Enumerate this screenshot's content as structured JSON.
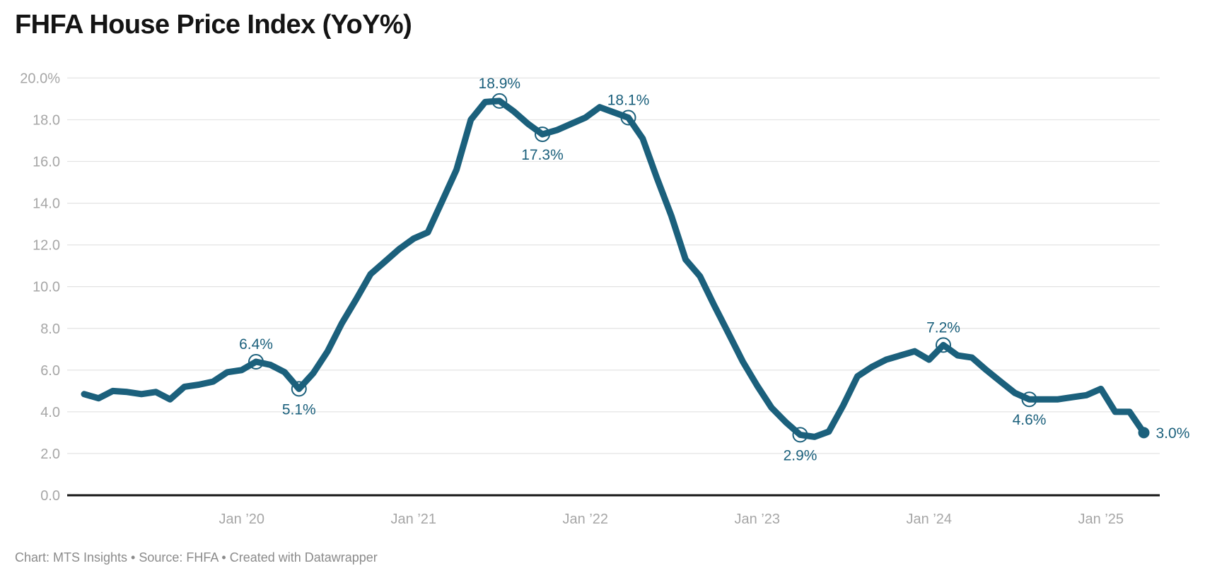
{
  "title": "FHFA House Price Index (YoY%)",
  "footer": "Chart: MTS Insights • Source: FHFA • Created with Datawrapper",
  "colors": {
    "line": "#1b607c",
    "annotation_text": "#1b607c",
    "axis_text": "#a6a6a6",
    "grid": "#e4e4e4",
    "baseline": "#161616",
    "title_text": "#141414",
    "footer_text": "#8b8b8b",
    "background": "#ffffff"
  },
  "chart_data": {
    "type": "line",
    "title": "FHFA House Price Index (YoY%)",
    "unit": "%",
    "grid": true,
    "legend_position": "none",
    "ylim": [
      0,
      20
    ],
    "x": [
      "2019-02",
      "2019-03",
      "2019-04",
      "2019-05",
      "2019-06",
      "2019-07",
      "2019-08",
      "2019-09",
      "2019-10",
      "2019-11",
      "2019-12",
      "2020-01",
      "2020-02",
      "2020-03",
      "2020-04",
      "2020-05",
      "2020-06",
      "2020-07",
      "2020-08",
      "2020-09",
      "2020-10",
      "2020-11",
      "2020-12",
      "2021-01",
      "2021-02",
      "2021-03",
      "2021-04",
      "2021-05",
      "2021-06",
      "2021-07",
      "2021-08",
      "2021-09",
      "2021-10",
      "2021-11",
      "2021-12",
      "2022-01",
      "2022-02",
      "2022-03",
      "2022-04",
      "2022-05",
      "2022-06",
      "2022-07",
      "2022-08",
      "2022-09",
      "2022-10",
      "2022-11",
      "2022-12",
      "2023-01",
      "2023-02",
      "2023-03",
      "2023-04",
      "2023-05",
      "2023-06",
      "2023-07",
      "2023-08",
      "2023-09",
      "2023-10",
      "2023-11",
      "2023-12",
      "2024-01",
      "2024-02",
      "2024-03",
      "2024-04",
      "2024-05",
      "2024-06",
      "2024-07",
      "2024-08",
      "2024-09",
      "2024-10",
      "2024-11",
      "2024-12",
      "2025-01",
      "2025-02",
      "2025-03",
      "2025-04"
    ],
    "values": [
      4.85,
      4.65,
      5.0,
      4.95,
      4.85,
      4.95,
      4.6,
      5.2,
      5.3,
      5.45,
      5.9,
      6.0,
      6.4,
      6.25,
      5.9,
      5.1,
      5.85,
      6.9,
      8.25,
      9.4,
      10.6,
      11.2,
      11.8,
      12.3,
      12.6,
      14.1,
      15.6,
      18.0,
      18.85,
      18.9,
      18.4,
      17.8,
      17.3,
      17.5,
      17.8,
      18.1,
      18.6,
      18.35,
      18.1,
      17.1,
      15.2,
      13.4,
      11.3,
      10.5,
      9.1,
      7.75,
      6.4,
      5.25,
      4.2,
      3.5,
      2.9,
      2.8,
      3.05,
      4.3,
      5.7,
      6.15,
      6.5,
      6.7,
      6.9,
      6.5,
      7.2,
      6.7,
      6.6,
      6.0,
      5.45,
      4.9,
      4.6,
      4.6,
      4.6,
      4.7,
      4.8,
      5.1,
      4.0,
      4.0,
      3.0
    ],
    "y_ticks": [
      {
        "value": 20,
        "label": "20.0%"
      },
      {
        "value": 18,
        "label": "18.0"
      },
      {
        "value": 16,
        "label": "16.0"
      },
      {
        "value": 14,
        "label": "14.0"
      },
      {
        "value": 12,
        "label": "12.0"
      },
      {
        "value": 10,
        "label": "10.0"
      },
      {
        "value": 8,
        "label": "8.0"
      },
      {
        "value": 6,
        "label": "6.0"
      },
      {
        "value": 4,
        "label": "4.0"
      },
      {
        "value": 2,
        "label": "2.0"
      },
      {
        "value": 0,
        "label": "0.0"
      }
    ],
    "x_ticks": [
      {
        "index": 11,
        "label": "Jan ’20"
      },
      {
        "index": 23,
        "label": "Jan ’21"
      },
      {
        "index": 35,
        "label": "Jan ’22"
      },
      {
        "index": 47,
        "label": "Jan ’23"
      },
      {
        "index": 59,
        "label": "Jan ’24"
      },
      {
        "index": 71,
        "label": "Jan ’25"
      }
    ],
    "annotations": [
      {
        "index": 12,
        "label": "6.4%",
        "placement": "above",
        "marker": "ring"
      },
      {
        "index": 15,
        "label": "5.1%",
        "placement": "below",
        "marker": "ring"
      },
      {
        "index": 29,
        "label": "18.9%",
        "placement": "above",
        "marker": "ring"
      },
      {
        "index": 32,
        "label": "17.3%",
        "placement": "below",
        "marker": "ring"
      },
      {
        "index": 38,
        "label": "18.1%",
        "placement": "above",
        "marker": "ring"
      },
      {
        "index": 50,
        "label": "2.9%",
        "placement": "below",
        "marker": "ring"
      },
      {
        "index": 60,
        "label": "7.2%",
        "placement": "above",
        "marker": "ring"
      },
      {
        "index": 66,
        "label": "4.6%",
        "placement": "below",
        "marker": "ring"
      },
      {
        "index": 74,
        "label": "3.0%",
        "placement": "right",
        "marker": "dot"
      }
    ]
  }
}
